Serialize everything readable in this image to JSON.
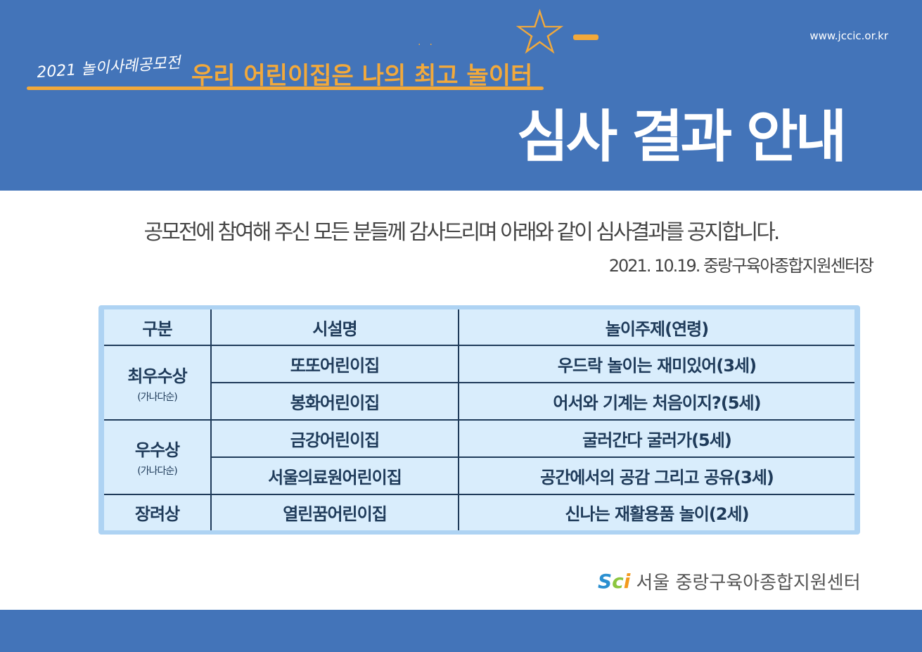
{
  "header": {
    "url": "www.jccic.or.kr",
    "subtitle": "2021 놀이사례공모전",
    "slogan": "우리 어린이집은 나의 최고 놀이터",
    "title": "심사 결과 안내",
    "accent": "#f2a93b",
    "bg": "#4374b9"
  },
  "notice": "공모전에 참여해 주신 모든 분들께 감사드리며 아래와 같이 심사결과를 공지합니다.",
  "date": "2021. 10.19. 중랑구육아종합지원센터장",
  "table": {
    "headers": [
      "구분",
      "시설명",
      "놀이주제(연령)"
    ],
    "groups": [
      {
        "award": "최우수상",
        "note": "(가나다순)"
      },
      {
        "award": "우수상",
        "note": "(가나다순)"
      },
      {
        "award": "장려상"
      }
    ],
    "rows": [
      {
        "name": "또또어린이집",
        "topic": "우드락 놀이는 재미있어(3세)"
      },
      {
        "name": "봉화어린이집",
        "topic": "어서와 기계는 처음이지?(5세)"
      },
      {
        "name": "금강어린이집",
        "topic": "굴러간다 굴러가(5세)"
      },
      {
        "name": "서울의료원어린이집",
        "topic": "공간에서의 공감 그리고 공유(3세)"
      },
      {
        "name": "열린꿈어린이집",
        "topic": "신나는 재활용품 놀이(2세)"
      }
    ]
  },
  "footer_logo": {
    "mark": "SCi",
    "text": "서울 중랑구육아종합지원센터"
  }
}
